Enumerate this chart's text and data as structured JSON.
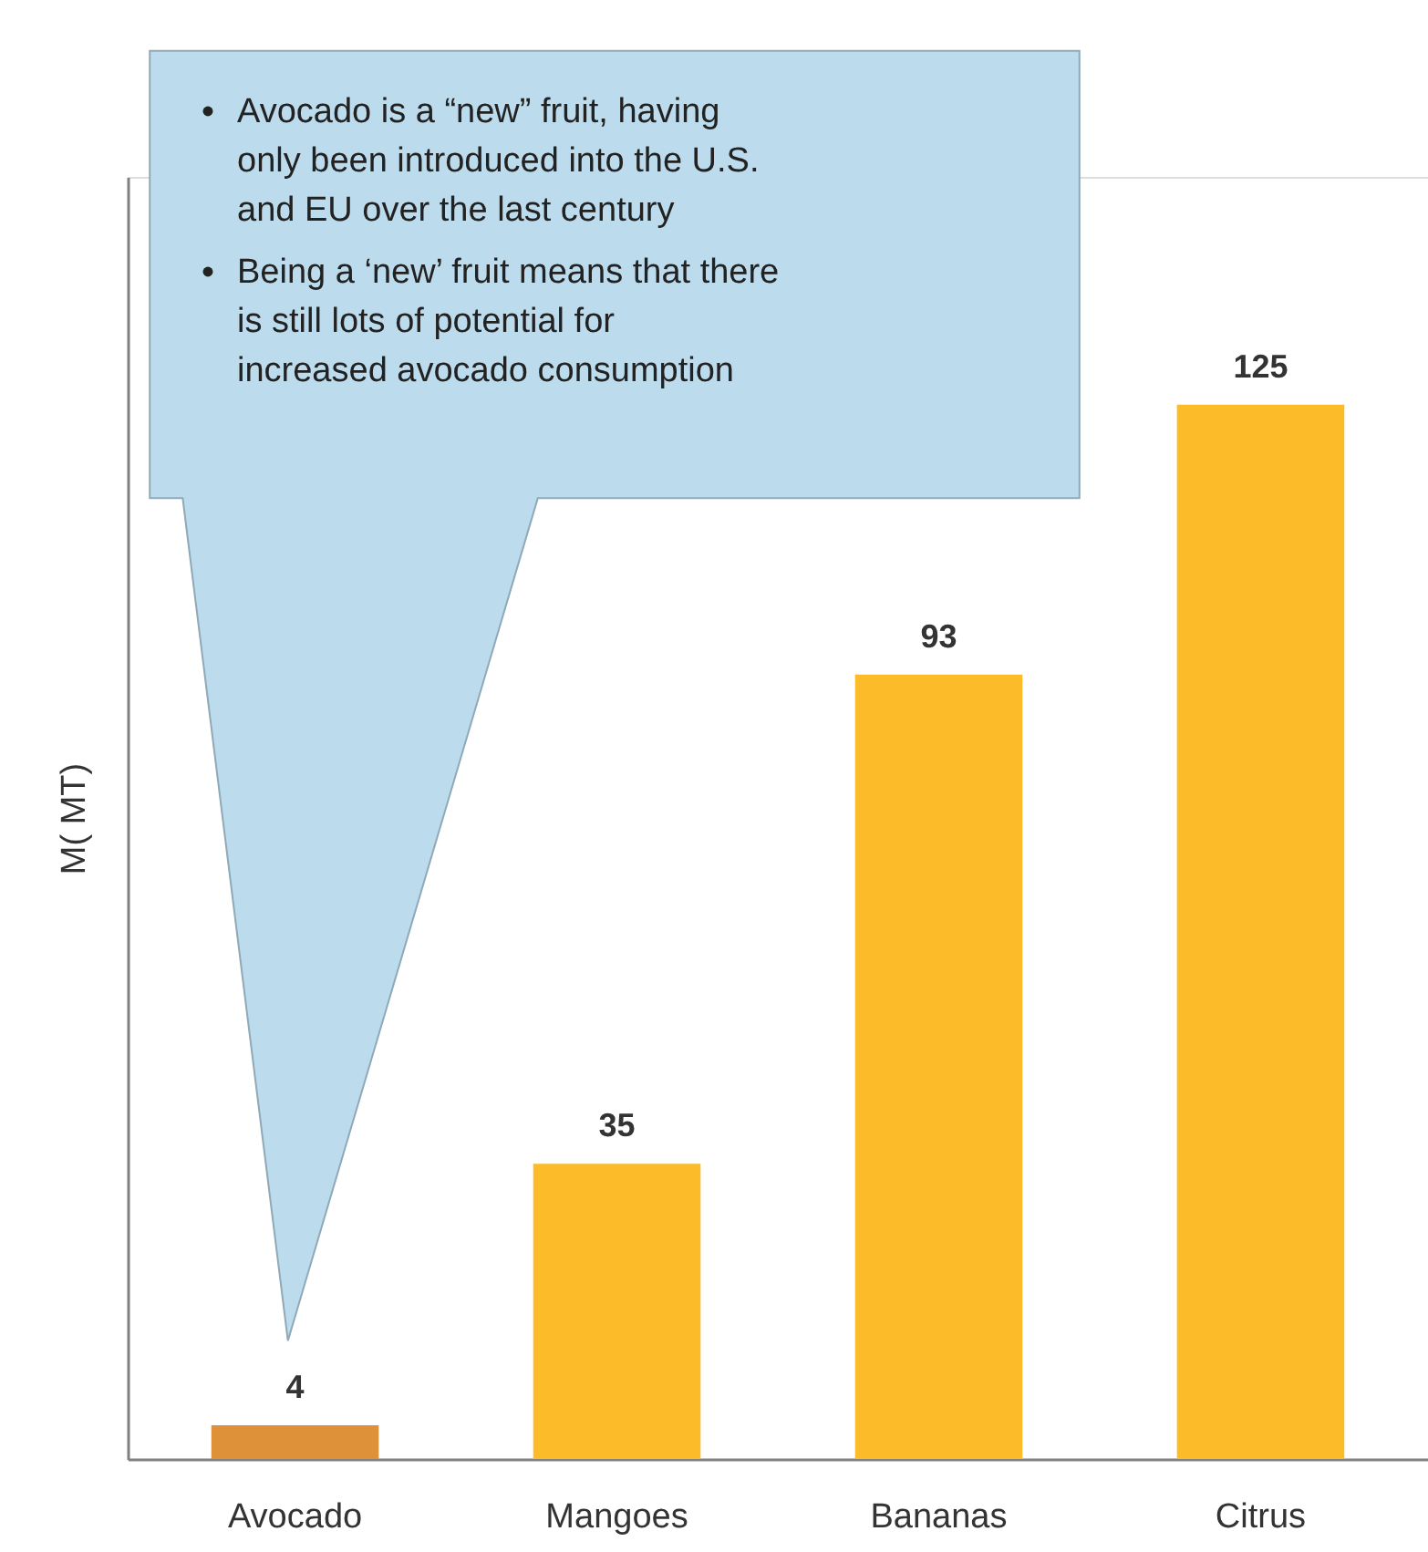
{
  "chart_data": {
    "type": "bar",
    "categories": [
      "Avocado",
      "Mangoes",
      "Bananas",
      "Citrus"
    ],
    "values": [
      4,
      35,
      93,
      125
    ],
    "colors": [
      "#de9139",
      "#fcbb29",
      "#fcbb29",
      "#fcbb29"
    ],
    "ylabel": "M( MT)",
    "ylim": [
      0,
      152
    ],
    "data_labels": true,
    "tick_labels": "x",
    "annotations": [
      "Avocado is a “new” fruit, having only been introduced into the U.S. and EU over the last century",
      "Being a ‘new’ fruit means that there is still lots of potential for increased avocado consumption"
    ]
  }
}
